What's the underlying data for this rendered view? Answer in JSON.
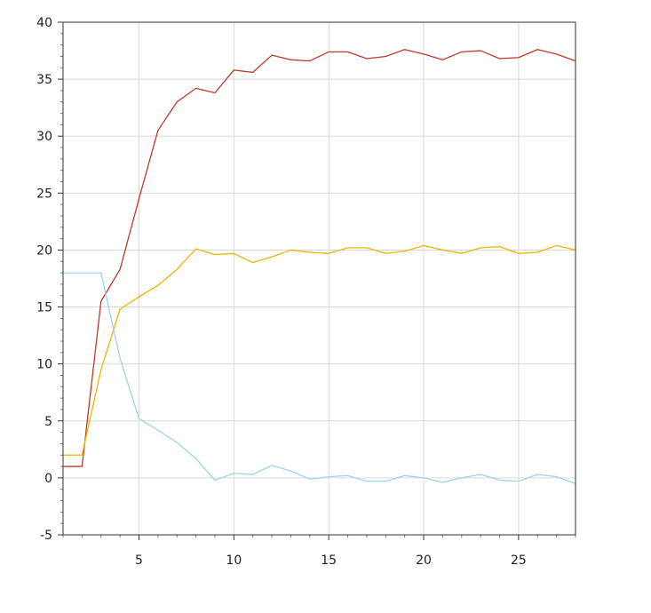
{
  "chart_data": {
    "type": "line",
    "title": "",
    "xlabel": "",
    "ylabel": "",
    "xlim": [
      1,
      28
    ],
    "ylim": [
      -5,
      40
    ],
    "x_ticks": [
      5,
      10,
      15,
      20,
      25
    ],
    "y_ticks": [
      -5,
      0,
      5,
      10,
      15,
      20,
      25,
      30,
      35,
      40
    ],
    "x_tick_labels": [
      "5",
      "10",
      "15",
      "20",
      "25"
    ],
    "y_tick_labels": [
      "-5",
      "0",
      "5",
      "10",
      "15",
      "20",
      "25",
      "30",
      "35",
      "40"
    ],
    "grid": true,
    "legend": "none",
    "x": [
      1,
      2,
      3,
      4,
      5,
      6,
      7,
      8,
      9,
      10,
      11,
      12,
      13,
      14,
      15,
      16,
      17,
      18,
      19,
      20,
      21,
      22,
      23,
      24,
      25,
      26,
      27,
      28
    ],
    "series": [
      {
        "color": "#c0392b",
        "values": [
          1.0,
          1.0,
          15.5,
          18.3,
          24.5,
          30.5,
          33.0,
          34.2,
          33.8,
          35.8,
          35.6,
          37.1,
          36.7,
          36.6,
          37.4,
          37.4,
          36.8,
          37.0,
          37.6,
          37.2,
          36.7,
          37.4,
          37.5,
          36.8,
          36.9,
          37.6,
          37.2,
          36.6
        ]
      },
      {
        "color": "#f0b400",
        "values": [
          2.0,
          2.0,
          9.5,
          14.8,
          15.9,
          16.9,
          18.3,
          20.1,
          19.6,
          19.7,
          18.9,
          19.4,
          20.0,
          19.8,
          19.7,
          20.2,
          20.2,
          19.7,
          19.9,
          20.4,
          20.0,
          19.7,
          20.2,
          20.3,
          19.7,
          19.8,
          20.4,
          20.0
        ]
      },
      {
        "color": "#9ed4ea",
        "values": [
          18.0,
          18.0,
          18.0,
          10.5,
          5.2,
          4.2,
          3.1,
          1.7,
          -0.2,
          0.4,
          0.3,
          1.1,
          0.6,
          -0.1,
          0.1,
          0.2,
          -0.3,
          -0.3,
          0.2,
          0.0,
          -0.4,
          0.0,
          0.3,
          -0.2,
          -0.3,
          0.3,
          0.1,
          -0.5
        ]
      }
    ]
  }
}
